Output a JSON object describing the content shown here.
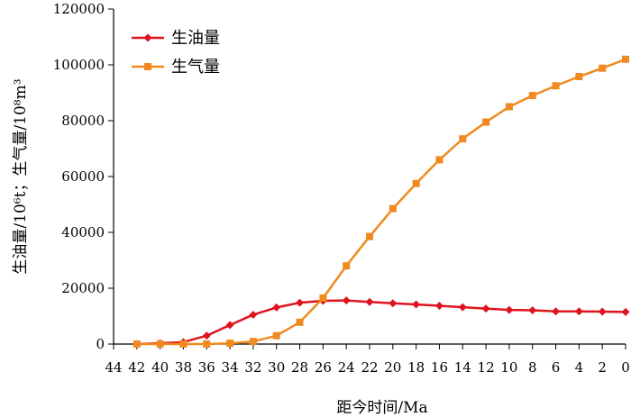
{
  "chart_data": {
    "type": "line",
    "xlabel": "距今时间/Ma",
    "ylabel": "生油量/10⁶t；生气量/10⁸m³",
    "x_ticks": [
      44,
      42,
      40,
      38,
      36,
      34,
      32,
      30,
      28,
      26,
      24,
      22,
      20,
      18,
      16,
      14,
      12,
      10,
      8,
      6,
      4,
      2,
      0
    ],
    "y_ticks": [
      0,
      20000,
      40000,
      60000,
      80000,
      100000,
      120000
    ],
    "y_tick_labels": [
      "0",
      "20000",
      "40000",
      "60000",
      "80000",
      "100000",
      "120000"
    ],
    "xlim": [
      44,
      0
    ],
    "ylim": [
      0,
      120000
    ],
    "x_reversed": true,
    "grid": false,
    "legend_position": "top-left",
    "x": [
      42,
      40,
      38,
      36,
      34,
      32,
      30,
      28,
      26,
      24,
      22,
      20,
      18,
      16,
      14,
      12,
      10,
      8,
      6,
      4,
      2,
      0
    ],
    "series": [
      {
        "name": "生油量",
        "color": "#e0141e",
        "marker": "diamond",
        "values": [
          0,
          300,
          700,
          3000,
          6800,
          10500,
          13100,
          14800,
          15500,
          15600,
          15100,
          14600,
          14200,
          13700,
          13200,
          12700,
          12200,
          12100,
          11700,
          11700,
          11600,
          11500
        ]
      },
      {
        "name": "生气量",
        "color": "#f08a1e",
        "marker": "square",
        "values": [
          0,
          0,
          0,
          0,
          300,
          900,
          3000,
          7800,
          16500,
          28000,
          38500,
          48500,
          57500,
          66000,
          73500,
          79500,
          85000,
          89000,
          92500,
          95800,
          98800,
          102000
        ]
      }
    ]
  }
}
